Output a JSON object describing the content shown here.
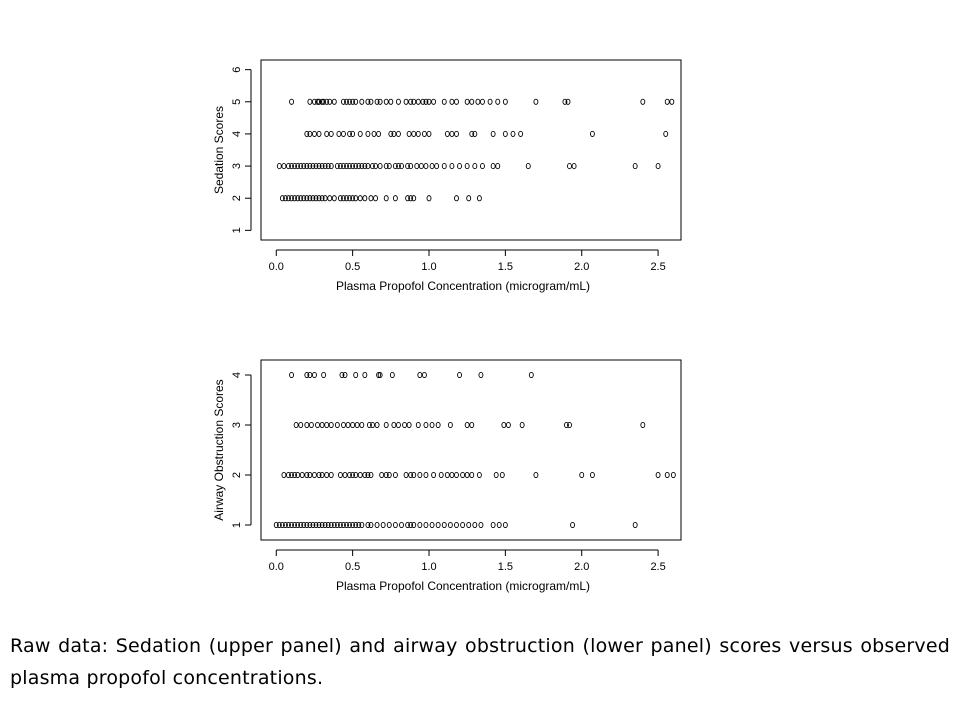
{
  "caption": "Raw data: Sedation (upper panel) and airway obstruction (lower panel) scores versus observed plasma propofol concentrations.",
  "chart_data": [
    {
      "type": "scatter",
      "title": "",
      "xlabel": "Plasma Propofol Concentration (microgram/mL)",
      "ylabel": "Sedation Scores",
      "xlim": [
        -0.1,
        2.65
      ],
      "ylim": [
        0.7,
        6.3
      ],
      "xticks": [
        0.0,
        0.5,
        1.0,
        1.5,
        2.0,
        2.5
      ],
      "xtick_labels": [
        "0.0",
        "0.5",
        "1.0",
        "1.5",
        "2.0",
        "2.5"
      ],
      "yticks": [
        1,
        2,
        3,
        4,
        5,
        6
      ],
      "ytick_labels": [
        "1",
        "2",
        "3",
        "4",
        "5",
        "6"
      ],
      "marker": "open-circle",
      "grid": false,
      "points_by_score": {
        "5": [
          0.1,
          0.22,
          0.25,
          0.27,
          0.28,
          0.3,
          0.31,
          0.33,
          0.35,
          0.38,
          0.44,
          0.46,
          0.48,
          0.5,
          0.52,
          0.56,
          0.6,
          0.62,
          0.66,
          0.68,
          0.72,
          0.75,
          0.8,
          0.85,
          0.88,
          0.9,
          0.93,
          0.96,
          0.98,
          1.0,
          1.03,
          1.1,
          1.15,
          1.18,
          1.25,
          1.28,
          1.32,
          1.35,
          1.4,
          1.45,
          1.5,
          1.7,
          1.89,
          1.91,
          2.4,
          2.56,
          2.59
        ],
        "4": [
          0.2,
          0.22,
          0.25,
          0.28,
          0.33,
          0.36,
          0.41,
          0.44,
          0.48,
          0.5,
          0.55,
          0.6,
          0.64,
          0.67,
          0.75,
          0.77,
          0.8,
          0.87,
          0.9,
          0.93,
          0.97,
          1.0,
          1.12,
          1.15,
          1.18,
          1.28,
          1.3,
          1.42,
          1.5,
          1.55,
          1.6,
          2.07,
          2.55
        ],
        "3": [
          0.02,
          0.05,
          0.08,
          0.1,
          0.12,
          0.14,
          0.16,
          0.18,
          0.2,
          0.22,
          0.24,
          0.26,
          0.28,
          0.3,
          0.32,
          0.34,
          0.36,
          0.4,
          0.42,
          0.44,
          0.46,
          0.48,
          0.5,
          0.52,
          0.54,
          0.56,
          0.58,
          0.6,
          0.63,
          0.65,
          0.68,
          0.72,
          0.74,
          0.78,
          0.8,
          0.82,
          0.86,
          0.88,
          0.92,
          0.95,
          0.98,
          1.02,
          1.05,
          1.1,
          1.15,
          1.2,
          1.25,
          1.3,
          1.35,
          1.42,
          1.45,
          1.65,
          1.92,
          1.95,
          2.35,
          2.5
        ],
        "2": [
          0.04,
          0.06,
          0.08,
          0.1,
          0.12,
          0.14,
          0.16,
          0.18,
          0.2,
          0.22,
          0.24,
          0.26,
          0.28,
          0.3,
          0.32,
          0.35,
          0.38,
          0.42,
          0.44,
          0.46,
          0.48,
          0.5,
          0.52,
          0.55,
          0.58,
          0.62,
          0.65,
          0.72,
          0.78,
          0.86,
          0.88,
          0.9,
          1.0,
          1.18,
          1.26,
          1.33
        ],
        "1": []
      }
    },
    {
      "type": "scatter",
      "title": "",
      "xlabel": "Plasma Propofol Concentration (microgram/mL)",
      "ylabel": "Airway Obstruction Scores",
      "xlim": [
        -0.1,
        2.65
      ],
      "ylim": [
        0.7,
        4.3
      ],
      "xticks": [
        0.0,
        0.5,
        1.0,
        1.5,
        2.0,
        2.5
      ],
      "xtick_labels": [
        "0.0",
        "0.5",
        "1.0",
        "1.5",
        "2.0",
        "2.5"
      ],
      "yticks": [
        1,
        2,
        3,
        4
      ],
      "ytick_labels": [
        "1",
        "2",
        "3",
        "4"
      ],
      "marker": "open-circle",
      "grid": false,
      "points_by_score": {
        "4": [
          0.1,
          0.2,
          0.22,
          0.25,
          0.31,
          0.43,
          0.45,
          0.52,
          0.58,
          0.67,
          0.68,
          0.76,
          0.94,
          0.97,
          1.2,
          1.34,
          1.67
        ],
        "3": [
          0.13,
          0.16,
          0.2,
          0.23,
          0.27,
          0.3,
          0.33,
          0.36,
          0.4,
          0.44,
          0.47,
          0.5,
          0.53,
          0.56,
          0.61,
          0.63,
          0.66,
          0.72,
          0.77,
          0.8,
          0.84,
          0.87,
          0.93,
          0.98,
          1.02,
          1.06,
          1.14,
          1.25,
          1.28,
          1.49,
          1.52,
          1.61,
          1.9,
          1.92,
          2.4
        ],
        "2": [
          0.05,
          0.08,
          0.1,
          0.12,
          0.14,
          0.17,
          0.2,
          0.22,
          0.25,
          0.28,
          0.3,
          0.33,
          0.36,
          0.42,
          0.45,
          0.48,
          0.5,
          0.52,
          0.55,
          0.58,
          0.6,
          0.62,
          0.69,
          0.72,
          0.74,
          0.78,
          0.85,
          0.88,
          0.9,
          0.94,
          0.98,
          1.03,
          1.08,
          1.12,
          1.15,
          1.18,
          1.22,
          1.25,
          1.28,
          1.33,
          1.44,
          1.48,
          1.7,
          2.0,
          2.07,
          2.5,
          2.56,
          2.6
        ],
        "1": [
          0.0,
          0.02,
          0.04,
          0.06,
          0.08,
          0.1,
          0.12,
          0.14,
          0.16,
          0.18,
          0.2,
          0.22,
          0.24,
          0.26,
          0.28,
          0.3,
          0.32,
          0.34,
          0.36,
          0.38,
          0.4,
          0.42,
          0.44,
          0.46,
          0.48,
          0.5,
          0.52,
          0.54,
          0.56,
          0.6,
          0.62,
          0.66,
          0.7,
          0.74,
          0.78,
          0.82,
          0.86,
          0.88,
          0.9,
          0.94,
          0.98,
          1.02,
          1.06,
          1.1,
          1.14,
          1.18,
          1.22,
          1.26,
          1.3,
          1.34,
          1.42,
          1.46,
          1.5,
          1.94,
          2.35
        ]
      }
    }
  ]
}
